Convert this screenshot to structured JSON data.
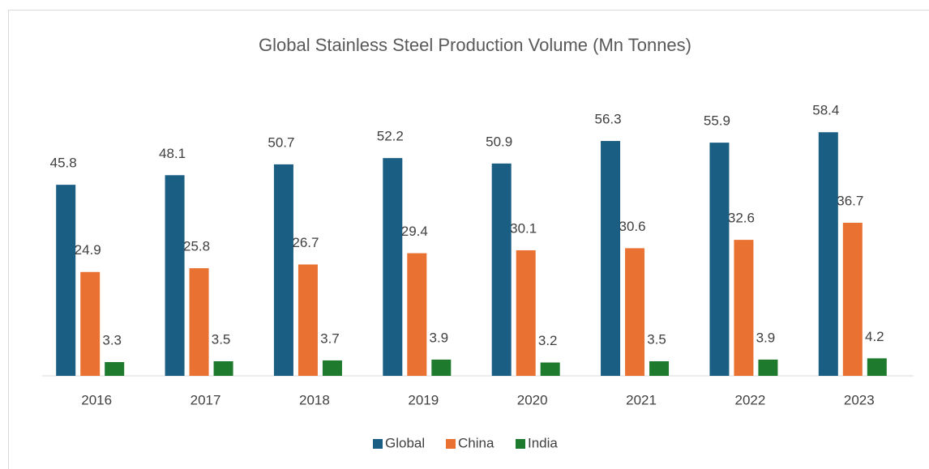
{
  "chart_data": {
    "type": "bar",
    "title": "Global Stainless Steel Production Volume (Mn Tonnes)",
    "categories": [
      "2016",
      "2017",
      "2018",
      "2019",
      "2020",
      "2021",
      "2022",
      "2023"
    ],
    "series": [
      {
        "name": "Global",
        "color": "#1a5e84",
        "values": [
          45.8,
          48.1,
          50.7,
          52.2,
          50.9,
          56.3,
          55.9,
          58.4
        ]
      },
      {
        "name": "China",
        "color": "#e97132",
        "values": [
          24.9,
          25.8,
          26.7,
          29.4,
          30.1,
          30.6,
          32.6,
          36.7
        ]
      },
      {
        "name": "India",
        "color": "#1e7a2c",
        "values": [
          3.3,
          3.5,
          3.7,
          3.9,
          3.2,
          3.5,
          3.9,
          4.2
        ]
      }
    ],
    "ylim": [
      0,
      70
    ],
    "legend": "bottom"
  }
}
